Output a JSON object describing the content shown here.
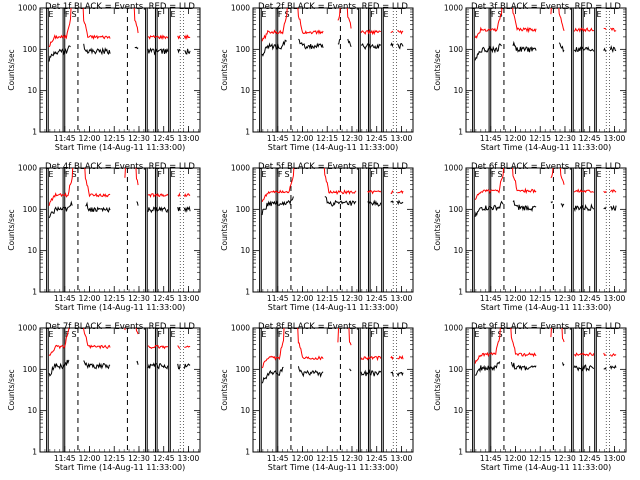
{
  "chart_data": {
    "type": "line",
    "xlabel": "Start Time (14-Aug-11 11:33:00)",
    "ylabel": "Counts/sec",
    "y_scale": "log",
    "ylim": [
      1,
      1000
    ],
    "y_ticks": [
      "1",
      "10",
      "100",
      "1000"
    ],
    "x_range_minutes": [
      -3,
      94
    ],
    "x_ticks": [
      "11:45",
      "12:00",
      "12:15",
      "12:30",
      "12:45",
      "13:00"
    ],
    "legend_colors": {
      "Events": "#000000",
      "LLD": "#ff0000"
    },
    "event_marks": [
      "E",
      "F",
      "S"
    ],
    "panels": [
      {
        "title": "Det 1f BLACK = Events, RED = LLD",
        "lld_base": 200,
        "events_base": 90,
        "saturated": [
          [
            16,
            23
          ],
          [
            48,
            54
          ]
        ],
        "gaps": [
          [
            40,
            48
          ],
          [
            57,
            62
          ],
          [
            75,
            80
          ]
        ]
      },
      {
        "title": "Det 2f BLACK = Events, RED = LLD",
        "lld_base": 260,
        "events_base": 120,
        "saturated": [
          [
            18,
            24
          ],
          [
            50,
            54
          ]
        ],
        "gaps": [
          [
            40,
            48
          ],
          [
            57,
            62
          ],
          [
            75,
            80
          ]
        ]
      },
      {
        "title": "Det 3f BLACK = Events, RED = LLD",
        "lld_base": 300,
        "events_base": 100,
        "saturated": [
          [
            19,
            25
          ],
          [
            49,
            53
          ]
        ],
        "gaps": [
          [
            40,
            48
          ],
          [
            57,
            62
          ],
          [
            75,
            80
          ]
        ]
      },
      {
        "title": "Det 4f BLACK = Events, RED = LLD",
        "lld_base": 220,
        "events_base": 100,
        "saturated": [
          [
            17,
            24
          ],
          [
            49,
            55
          ]
        ],
        "gaps": [
          [
            40,
            48
          ],
          [
            57,
            62
          ],
          [
            75,
            80
          ]
        ]
      },
      {
        "title": "Det 5f BLACK = Events, RED = LLD",
        "lld_base": 260,
        "events_base": 140,
        "saturated": [
          [
            22,
            40
          ]
        ],
        "gaps": [
          [
            60,
            66
          ],
          [
            75,
            80
          ]
        ]
      },
      {
        "title": "Det 6f BLACK = Events, RED = LLD",
        "lld_base": 280,
        "events_base": 110,
        "saturated": [
          [
            20,
            25
          ],
          [
            50,
            54
          ]
        ],
        "gaps": [
          [
            40,
            48
          ],
          [
            57,
            62
          ],
          [
            75,
            80
          ]
        ]
      },
      {
        "title": "Det 7f BLACK = Events, RED = LLD",
        "lld_base": 350,
        "events_base": 120,
        "saturated": [
          [
            15,
            23
          ],
          [
            49,
            55
          ]
        ],
        "gaps": [
          [
            40,
            48
          ],
          [
            57,
            62
          ],
          [
            75,
            80
          ]
        ]
      },
      {
        "title": "Det 8f BLACK = Events, RED = LLD",
        "lld_base": 190,
        "events_base": 80,
        "saturated": [
          [
            16,
            24
          ],
          [
            49,
            55
          ]
        ],
        "gaps": [
          [
            40,
            48
          ],
          [
            57,
            62
          ],
          [
            75,
            80
          ]
        ]
      },
      {
        "title": "Det 9f BLACK = Events, RED = LLD",
        "lld_base": 230,
        "events_base": 110,
        "saturated": [
          [
            18,
            24
          ],
          [
            49,
            55
          ]
        ],
        "gaps": [
          [
            40,
            48
          ],
          [
            57,
            62
          ],
          [
            75,
            80
          ]
        ]
      }
    ]
  }
}
